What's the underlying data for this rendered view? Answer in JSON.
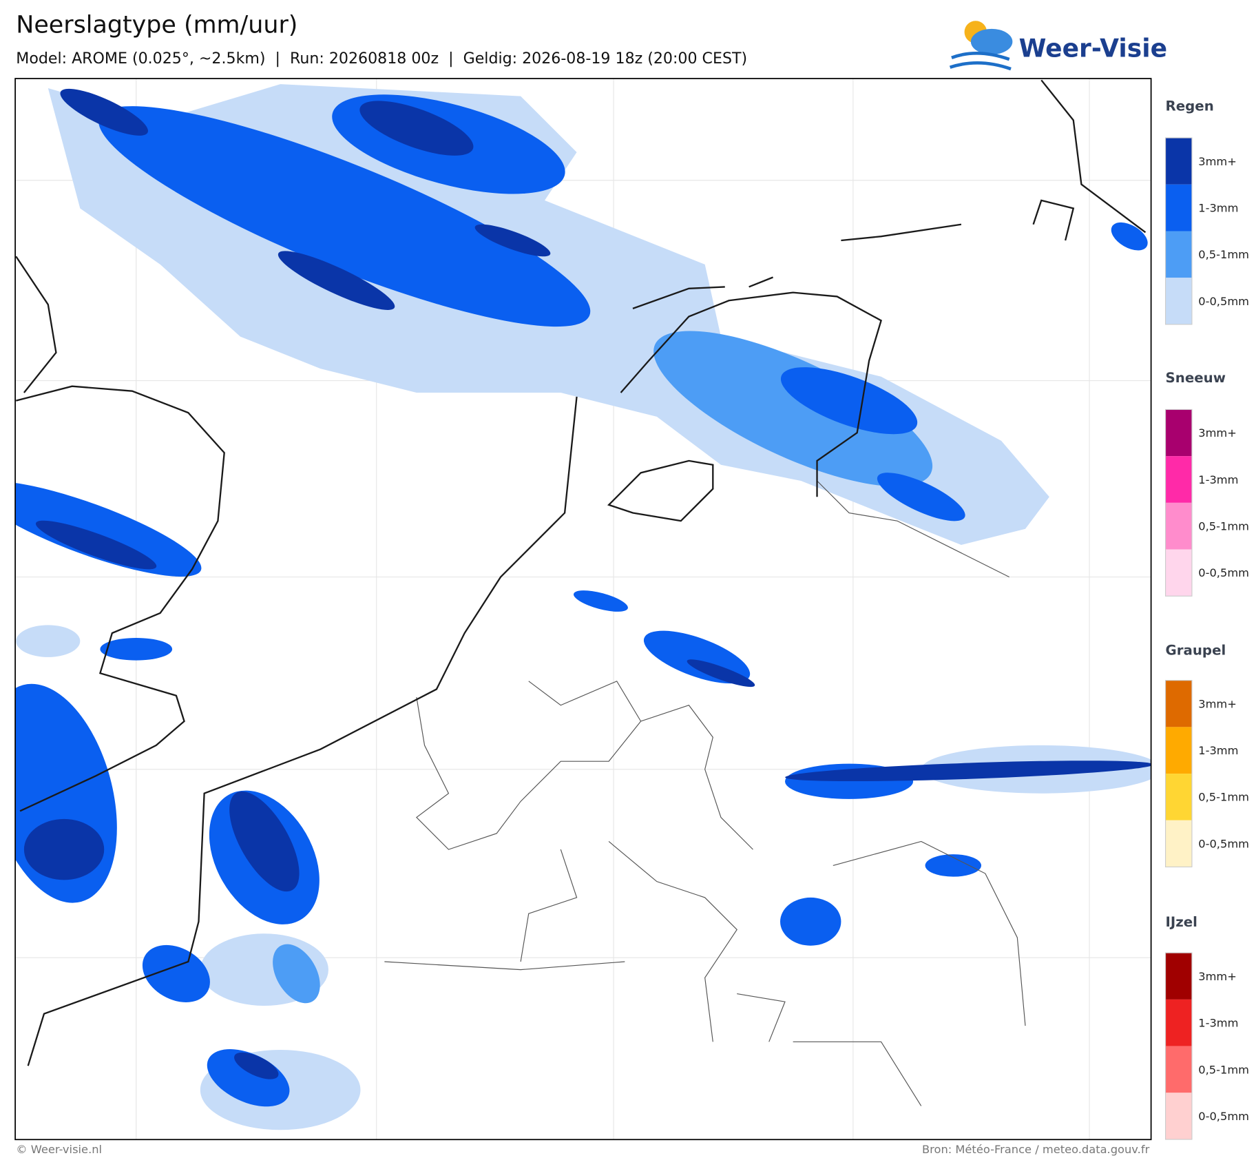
{
  "header": {
    "title": "Neerslagtype (mm/uur)",
    "subtitle": "Model: AROME (0.025°, ~2.5km)  |  Run: 20260818 00z  |  Geldig: 2026-08-19 18z (20:00 CEST)"
  },
  "logo": {
    "text": "Weer-Visie"
  },
  "legend": [
    {
      "title": "Regen",
      "items": [
        {
          "label": "3mm+",
          "color": "#0a35a8"
        },
        {
          "label": "1-3mm",
          "color": "#0a5ff0"
        },
        {
          "label": "0,5-1mm",
          "color": "#4d9df5"
        },
        {
          "label": "0-0,5mm",
          "color": "#c6dcf8"
        }
      ]
    },
    {
      "title": "Sneeuw",
      "items": [
        {
          "label": "3mm+",
          "color": "#a8006e"
        },
        {
          "label": "1-3mm",
          "color": "#ff2aa8"
        },
        {
          "label": "0,5-1mm",
          "color": "#ff8ccc"
        },
        {
          "label": "0-0,5mm",
          "color": "#ffd6ec"
        }
      ]
    },
    {
      "title": "Graupel",
      "items": [
        {
          "label": "3mm+",
          "color": "#de6a00"
        },
        {
          "label": "1-3mm",
          "color": "#ffaa00"
        },
        {
          "label": "0,5-1mm",
          "color": "#ffd633"
        },
        {
          "label": "0-0,5mm",
          "color": "#fff2c6"
        }
      ]
    },
    {
      "title": "IJzel",
      "items": [
        {
          "label": "3mm+",
          "color": "#a00000"
        },
        {
          "label": "1-3mm",
          "color": "#ee2222"
        },
        {
          "label": "0,5-1mm",
          "color": "#ff6b6b"
        },
        {
          "label": "0-0,5mm",
          "color": "#ffd0d0"
        }
      ]
    }
  ],
  "footer": {
    "left": "© Weer-visie.nl",
    "right": "Bron: Météo-France / meteo.data.gouv.fr"
  }
}
